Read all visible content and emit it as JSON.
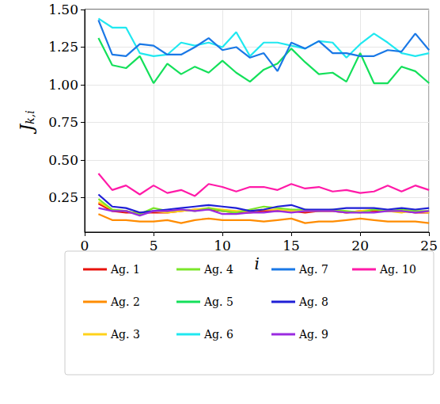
{
  "chart_data": {
    "type": "line",
    "xlabel": "i",
    "ylabel": "Jk,i",
    "x": [
      1,
      2,
      3,
      4,
      5,
      6,
      7,
      8,
      9,
      10,
      11,
      12,
      13,
      14,
      15,
      16,
      17,
      18,
      19,
      20,
      21,
      22,
      23,
      24,
      25
    ],
    "xlim": [
      0,
      25
    ],
    "xticks": [
      0,
      5,
      10,
      15,
      20,
      25
    ],
    "ylim": [
      0.02,
      1.5
    ],
    "yticks": [
      0.25,
      {
        "value": 0.5,
        "label": "0.50"
      },
      0.75,
      {
        "value": 1.0,
        "label": "1.00"
      },
      1.25,
      {
        "value": 1.5,
        "label": "1.50"
      }
    ],
    "grid": true,
    "legend": "bottom",
    "series": [
      {
        "name": "Ag. 1",
        "color": "#e8120c",
        "values": [
          0.21,
          0.16,
          0.15,
          0.15,
          0.15,
          0.15,
          0.16,
          0.17,
          0.17,
          0.16,
          0.15,
          0.15,
          0.16,
          0.16,
          0.16,
          0.15,
          0.16,
          0.16,
          0.15,
          0.16,
          0.16,
          0.16,
          0.16,
          0.15,
          0.15
        ]
      },
      {
        "name": "Ag. 2",
        "color": "#ff8c00",
        "values": [
          0.14,
          0.1,
          0.1,
          0.09,
          0.09,
          0.1,
          0.08,
          0.1,
          0.11,
          0.1,
          0.1,
          0.1,
          0.09,
          0.1,
          0.11,
          0.08,
          0.09,
          0.09,
          0.1,
          0.11,
          0.1,
          0.09,
          0.09,
          0.09,
          0.08
        ]
      },
      {
        "name": "Ag. 3",
        "color": "#ffd21a",
        "values": [
          0.22,
          0.17,
          0.16,
          0.14,
          0.16,
          0.15,
          0.16,
          0.17,
          0.18,
          0.17,
          0.16,
          0.16,
          0.17,
          0.17,
          0.16,
          0.16,
          0.16,
          0.16,
          0.15,
          0.16,
          0.17,
          0.16,
          0.15,
          0.16,
          0.15
        ]
      },
      {
        "name": "Ag. 4",
        "color": "#7be62a",
        "values": [
          0.24,
          0.17,
          0.16,
          0.14,
          0.18,
          0.16,
          0.17,
          0.16,
          0.18,
          0.16,
          0.15,
          0.17,
          0.19,
          0.18,
          0.17,
          0.17,
          0.16,
          0.17,
          0.16,
          0.15,
          0.17,
          0.16,
          0.17,
          0.16,
          0.16
        ]
      },
      {
        "name": "Ag. 5",
        "color": "#14e05a",
        "values": [
          1.31,
          1.13,
          1.11,
          1.19,
          1.01,
          1.14,
          1.07,
          1.12,
          1.08,
          1.16,
          1.08,
          1.02,
          1.1,
          1.14,
          1.24,
          1.15,
          1.07,
          1.08,
          1.02,
          1.21,
          1.01,
          1.01,
          1.12,
          1.09,
          1.01
        ]
      },
      {
        "name": "Ag. 6",
        "color": "#20e8f0",
        "values": [
          1.44,
          1.38,
          1.38,
          1.21,
          1.19,
          1.2,
          1.28,
          1.26,
          1.28,
          1.25,
          1.35,
          1.19,
          1.28,
          1.28,
          1.26,
          1.24,
          1.29,
          1.28,
          1.18,
          1.27,
          1.34,
          1.28,
          1.21,
          1.19,
          1.21
        ]
      },
      {
        "name": "Ag. 7",
        "color": "#1a78e6",
        "values": [
          1.43,
          1.2,
          1.19,
          1.27,
          1.26,
          1.2,
          1.2,
          1.25,
          1.31,
          1.23,
          1.25,
          1.18,
          1.21,
          1.09,
          1.28,
          1.24,
          1.29,
          1.21,
          1.21,
          1.19,
          1.19,
          1.23,
          1.22,
          1.34,
          1.23
        ]
      },
      {
        "name": "Ag. 8",
        "color": "#1f1fd6",
        "values": [
          0.27,
          0.19,
          0.18,
          0.15,
          0.16,
          0.17,
          0.18,
          0.19,
          0.2,
          0.19,
          0.18,
          0.16,
          0.17,
          0.19,
          0.2,
          0.17,
          0.17,
          0.17,
          0.18,
          0.18,
          0.18,
          0.17,
          0.18,
          0.17,
          0.18
        ]
      },
      {
        "name": "Ag. 9",
        "color": "#9a2be0",
        "values": [
          0.18,
          0.16,
          0.16,
          0.13,
          0.16,
          0.16,
          0.17,
          0.16,
          0.17,
          0.14,
          0.14,
          0.15,
          0.15,
          0.16,
          0.15,
          0.16,
          0.16,
          0.16,
          0.15,
          0.15,
          0.15,
          0.16,
          0.16,
          0.15,
          0.16
        ]
      },
      {
        "name": "Ag. 10",
        "color": "#ff1aa8",
        "values": [
          0.41,
          0.3,
          0.33,
          0.27,
          0.33,
          0.28,
          0.3,
          0.26,
          0.34,
          0.32,
          0.29,
          0.32,
          0.32,
          0.3,
          0.34,
          0.31,
          0.32,
          0.29,
          0.3,
          0.28,
          0.29,
          0.33,
          0.29,
          0.33,
          0.3
        ]
      }
    ]
  }
}
